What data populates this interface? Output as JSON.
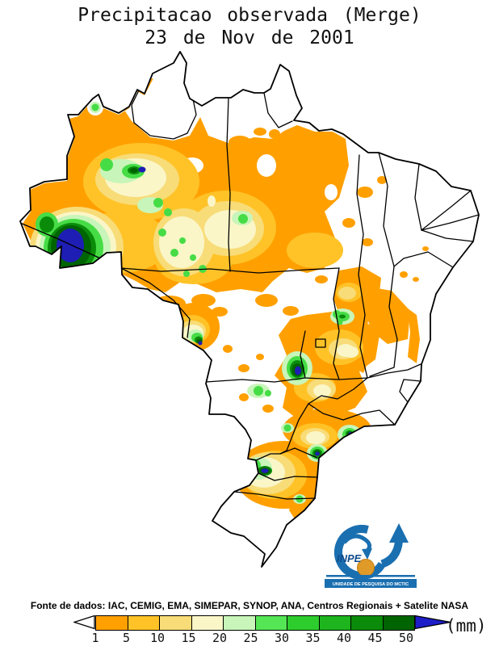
{
  "title": {
    "line1": "Precipitacao observada (Merge)",
    "line2": "23 de Nov de 2001"
  },
  "source_line": "Fonte de dados: IAC, CEMIG, EMA, SIMEPAR, SYNOP, ANA, Centros Regionais + Satelite NASA",
  "legend": {
    "unit": "(mm)",
    "ticks": [
      "1",
      "5",
      "10",
      "15",
      "20",
      "25",
      "30",
      "35",
      "40",
      "45",
      "50"
    ],
    "colors": [
      "#FFA000",
      "#FFC328",
      "#F8DC78",
      "#FAF6C8",
      "#C8F5B9",
      "#55E655",
      "#2ECD2E",
      "#1EB41E",
      "#0A8C0A",
      "#006400"
    ],
    "overflow_color": "#1E1EC8",
    "underflow_color": "#FFFFFF"
  },
  "logo": {
    "org": "INPE",
    "banner": "UNIDADE DE PESQUISA DO MCTIC",
    "blue": "#1A6FB0",
    "dark_blue": "#0F4C8C",
    "orange": "#E09A28"
  }
}
